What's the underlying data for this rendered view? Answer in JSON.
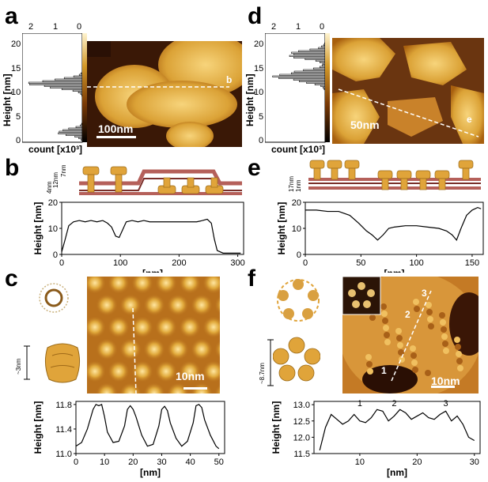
{
  "panels": {
    "a": {
      "label": "a",
      "hist_top_ticks": [
        "2",
        "1",
        "0"
      ],
      "yaxis_label": "Height [nm]",
      "yticks": [
        "20",
        "15",
        "10",
        "5",
        "0"
      ],
      "xaxis_label": "count [x10³]",
      "scalebar": "100nm",
      "marker": "b"
    },
    "b": {
      "label": "b",
      "dims": [
        "4nm",
        "12nm",
        "7nm"
      ],
      "yaxis_label": "Height [nm]",
      "xaxis_label": "[nm]",
      "yticks": [
        "20",
        "10",
        "0"
      ],
      "xticks": [
        "0",
        "100",
        "200",
        "300"
      ]
    },
    "c": {
      "label": "c",
      "dim": "~3nm",
      "scalebar": "10nm",
      "yaxis_label": "Height [nm]",
      "xaxis_label": "[nm]",
      "yticks": [
        "11.8",
        "11.4",
        "11.0"
      ],
      "xticks": [
        "0",
        "10",
        "20",
        "30",
        "40",
        "50"
      ]
    },
    "d": {
      "label": "d",
      "hist_top_ticks": [
        "2",
        "1",
        "0"
      ],
      "yaxis_label": "Height [nm]",
      "yticks": [
        "20",
        "15",
        "10",
        "5",
        "0"
      ],
      "xaxis_label": "count [x10³]",
      "scalebar": "50nm",
      "marker": "e"
    },
    "e": {
      "label": "e",
      "dims": [
        "17nm",
        "1nm"
      ],
      "yaxis_label": "Height [nm]",
      "xaxis_label": "[nm]",
      "yticks": [
        "20",
        "10",
        "0"
      ],
      "xticks": [
        "0",
        "50",
        "100",
        "150"
      ]
    },
    "f": {
      "label": "f",
      "dim": "~8.7nm",
      "scalebar": "10nm",
      "markers": [
        "1",
        "2",
        "3"
      ],
      "yaxis_label": "Height [nm]",
      "xaxis_label": "[nm]",
      "yticks": [
        "13.0",
        "12.5",
        "12.0",
        "11.5"
      ],
      "xticks": [
        "10",
        "20",
        "30"
      ],
      "peak_labels": [
        "1",
        "2",
        "3"
      ]
    }
  },
  "chart_data": [
    {
      "type": "line",
      "panel": "b",
      "xlabel": "[nm]",
      "ylabel": "Height [nm]",
      "xlim": [
        0,
        310
      ],
      "ylim": [
        0,
        20
      ],
      "x": [
        0,
        5,
        12,
        20,
        30,
        40,
        50,
        60,
        70,
        78,
        85,
        92,
        98,
        103,
        110,
        120,
        130,
        140,
        150,
        160,
        170,
        180,
        190,
        200,
        210,
        220,
        230,
        240,
        248,
        255,
        260,
        265,
        275,
        290,
        305
      ],
      "y": [
        1,
        5,
        11,
        12.5,
        13,
        12.5,
        13,
        12.5,
        13,
        12,
        10.5,
        7,
        6.5,
        9,
        12.5,
        13,
        12.5,
        13,
        12.5,
        12.5,
        12.5,
        12.5,
        12.5,
        12.5,
        12.5,
        12.5,
        12.5,
        13,
        13.5,
        12,
        6,
        1.5,
        0.5,
        0.5,
        0.5
      ]
    },
    {
      "type": "line",
      "panel": "c",
      "xlabel": "[nm]",
      "ylabel": "Height [nm]",
      "xlim": [
        0,
        52
      ],
      "ylim": [
        11.0,
        11.85
      ],
      "x": [
        0,
        2,
        4,
        6,
        7,
        8,
        9,
        10,
        11,
        13,
        15,
        17,
        18,
        19,
        20,
        21,
        23,
        25,
        27,
        29,
        30,
        31,
        32,
        33,
        35,
        37,
        39,
        41,
        42,
        43,
        44,
        45,
        47,
        49,
        50
      ],
      "y": [
        11.12,
        11.18,
        11.4,
        11.72,
        11.8,
        11.78,
        11.8,
        11.6,
        11.35,
        11.18,
        11.2,
        11.45,
        11.72,
        11.78,
        11.72,
        11.6,
        11.3,
        11.12,
        11.15,
        11.45,
        11.72,
        11.77,
        11.7,
        11.5,
        11.25,
        11.12,
        11.2,
        11.5,
        11.78,
        11.8,
        11.75,
        11.55,
        11.3,
        11.12,
        11.08
      ]
    },
    {
      "type": "line",
      "panel": "e",
      "xlabel": "[nm]",
      "ylabel": "Height [nm]",
      "xlim": [
        0,
        160
      ],
      "ylim": [
        0,
        20
      ],
      "x": [
        0,
        10,
        20,
        30,
        40,
        48,
        55,
        60,
        65,
        70,
        75,
        80,
        90,
        100,
        110,
        120,
        127,
        132,
        136,
        140,
        145,
        150,
        155,
        158
      ],
      "y": [
        17,
        17,
        16.5,
        16.5,
        15,
        12,
        9,
        7.5,
        5.5,
        7.5,
        10,
        10.5,
        11,
        11,
        10.5,
        10,
        9,
        7.5,
        5.5,
        10,
        15,
        17,
        18,
        17.5
      ]
    },
    {
      "type": "line",
      "panel": "f",
      "xlabel": "[nm]",
      "ylabel": "Height [nm]",
      "xlim": [
        2,
        31
      ],
      "ylim": [
        11.5,
        13.1
      ],
      "x": [
        3,
        4,
        5,
        6,
        7,
        8,
        9,
        10,
        11,
        12,
        13,
        14,
        15,
        16,
        17,
        18,
        19,
        20,
        21,
        22,
        23,
        24,
        25,
        26,
        27,
        28,
        29,
        30
      ],
      "y": [
        11.6,
        12.3,
        12.7,
        12.55,
        12.4,
        12.5,
        12.7,
        12.5,
        12.45,
        12.6,
        12.85,
        12.8,
        12.5,
        12.65,
        12.85,
        12.75,
        12.55,
        12.65,
        12.75,
        12.6,
        12.55,
        12.7,
        12.8,
        12.5,
        12.65,
        12.4,
        12.0,
        11.9
      ]
    }
  ]
}
